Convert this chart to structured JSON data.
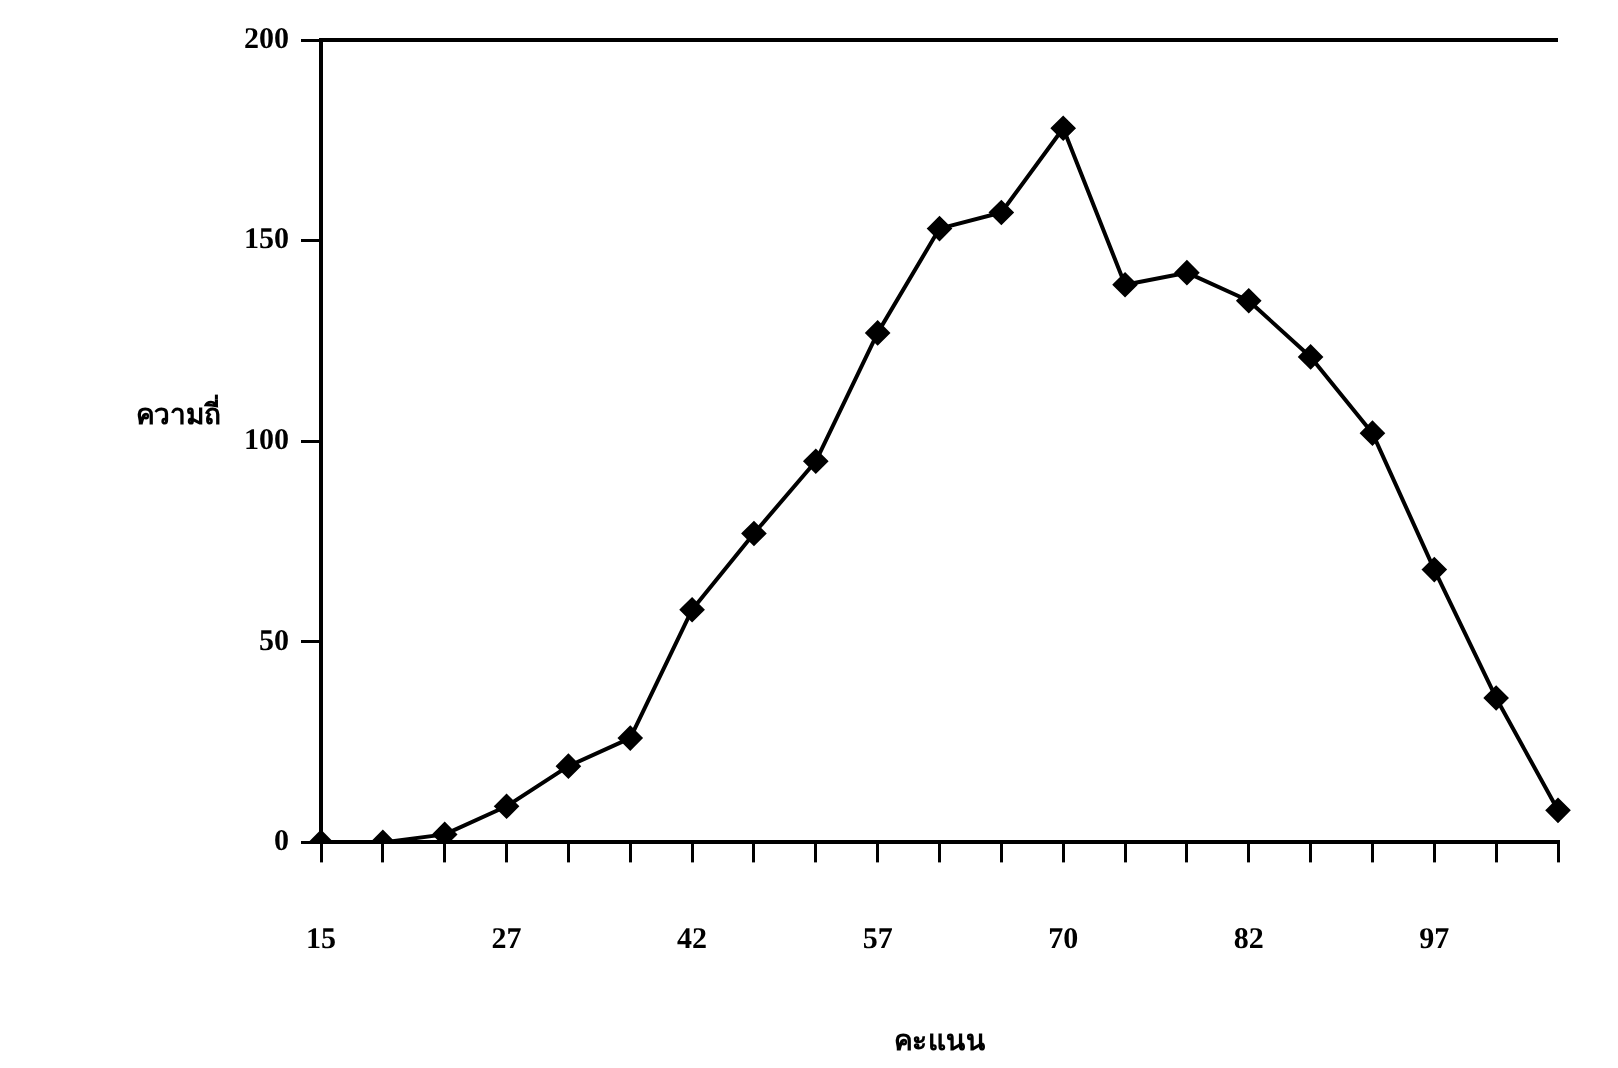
{
  "chart_data": {
    "type": "line",
    "xlabel": "คะแนน",
    "ylabel": "ความถี่",
    "categories": [
      "15",
      null,
      null,
      "27",
      null,
      null,
      "42",
      null,
      null,
      "57",
      null,
      null,
      "70",
      null,
      null,
      "82",
      null,
      null,
      "97",
      null,
      null
    ],
    "series": [
      {
        "color": "#000000",
        "values": [
          0,
          0,
          2,
          9,
          19,
          26,
          58,
          77,
          95,
          127,
          153,
          157,
          178,
          139,
          142,
          135,
          121,
          102,
          68,
          36,
          8
        ]
      }
    ],
    "ylim": [
      0,
      200
    ],
    "yticks": [
      0,
      50,
      100,
      150,
      200
    ],
    "grid": false,
    "legend": false,
    "marker": "diamond",
    "line_style": "solid"
  }
}
